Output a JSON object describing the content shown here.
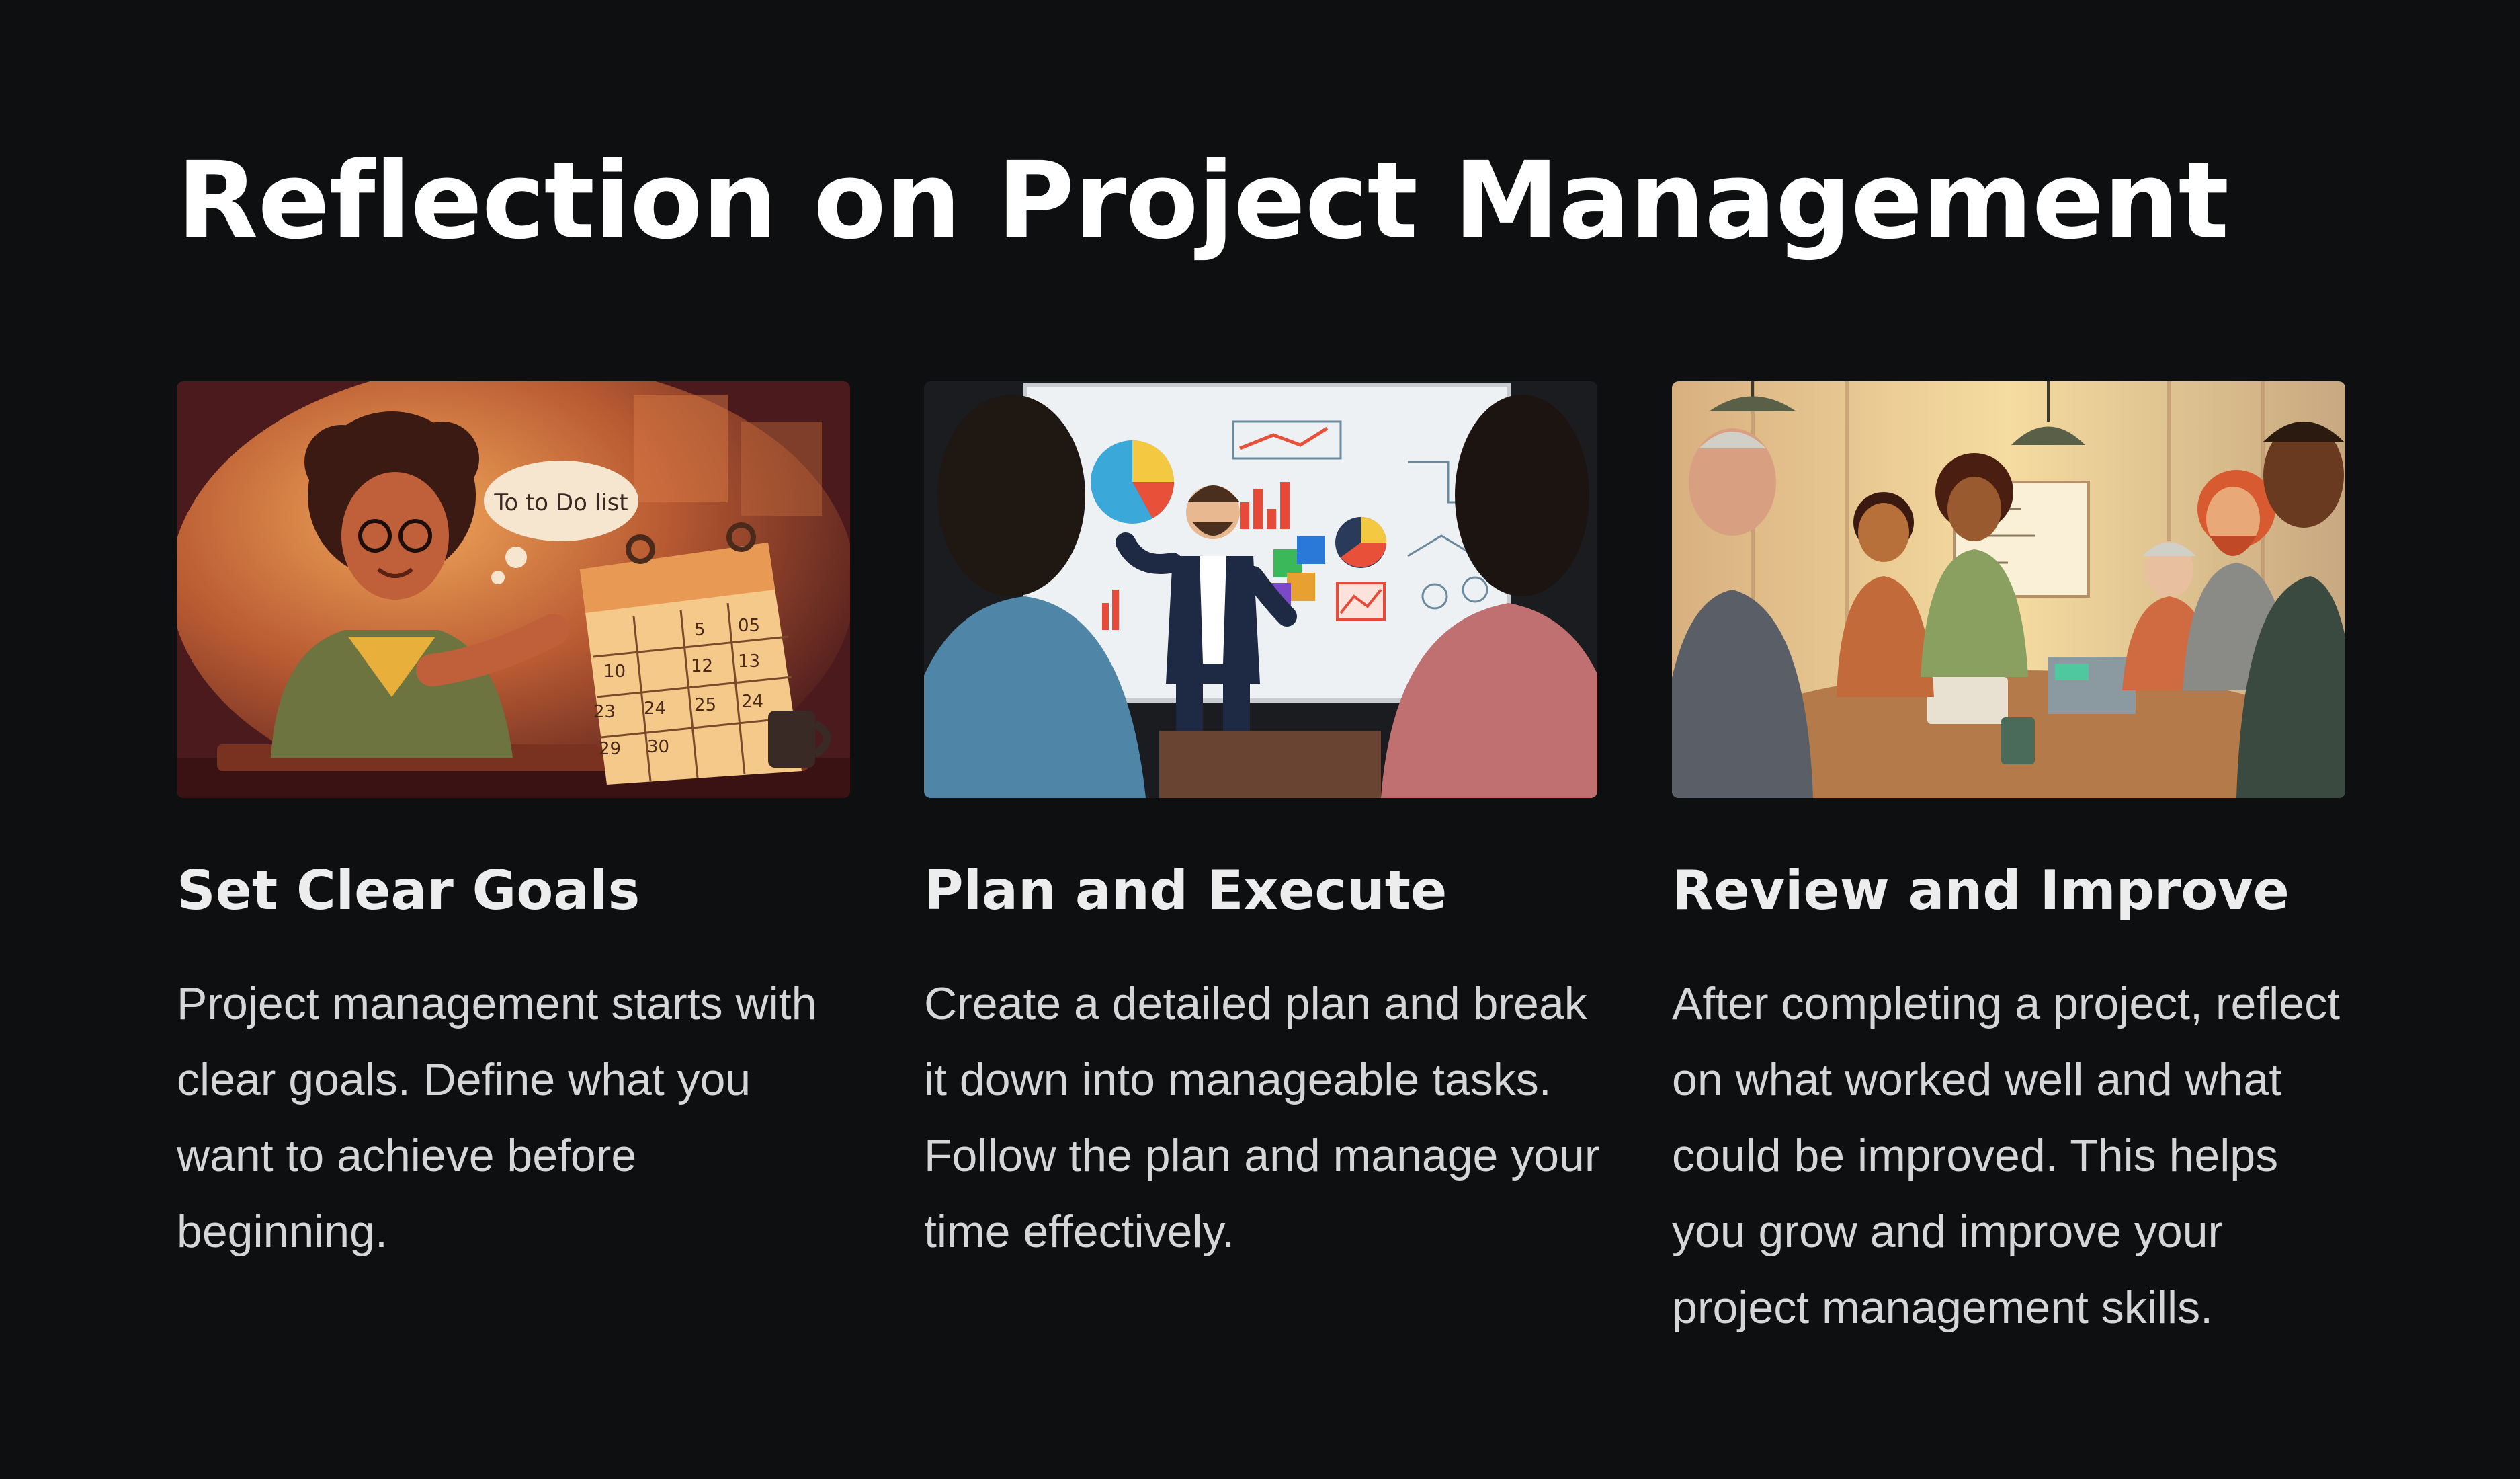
{
  "slide": {
    "title": "Reflection on Project Management"
  },
  "cards": [
    {
      "title": "Set Clear Goals",
      "body": "Project management starts with clear goals. Define what you want to achieve before beginning.",
      "illustration": {
        "bubble_text": "To to Do list",
        "calendar_numbers": [
          "5",
          "05",
          "10",
          "12",
          "13",
          "23",
          "24",
          "25",
          "24",
          "29",
          "30"
        ]
      }
    },
    {
      "title": "Plan and Execute",
      "body": "Create a detailed plan and break it down into manageable tasks. Follow the plan and manage your time effectively."
    },
    {
      "title": "Review and Improve",
      "body": "After completing a project, reflect on what worked well and what could be improved. This helps you grow and improve your project management skills."
    }
  ],
  "colors": {
    "background": "#0e0f11",
    "title": "#ffffff",
    "card_title": "#ededed",
    "card_body": "#d6d6d6"
  }
}
